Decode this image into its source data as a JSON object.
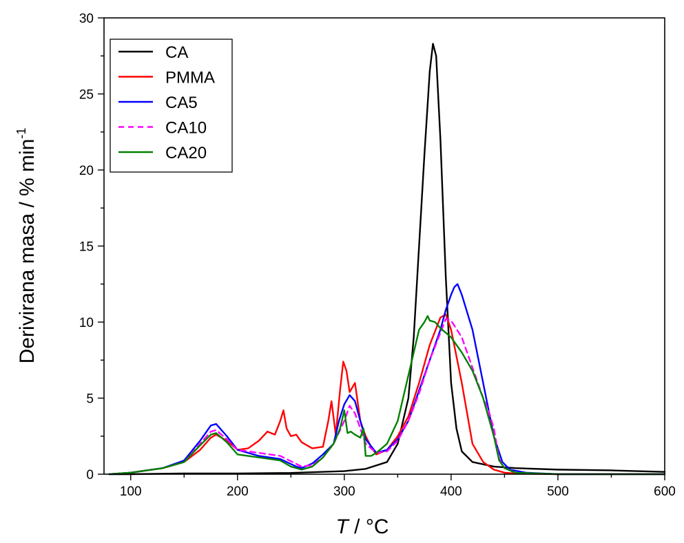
{
  "chart_data": {
    "type": "line",
    "xlabel_italic": "T",
    "xlabel_rest": " / °C",
    "ylabel_main": "Derivirana masa / % min",
    "ylabel_sup": "-1",
    "xlim": [
      75,
      600
    ],
    "ylim": [
      0,
      30
    ],
    "xticks": [
      100,
      200,
      300,
      400,
      500,
      600
    ],
    "yticks": [
      0,
      5,
      10,
      15,
      20,
      25,
      30
    ],
    "grid": false,
    "legend_position": "top-left",
    "series": [
      {
        "name": "CA",
        "color": "#000000",
        "dash": "",
        "x": [
          80,
          100,
          150,
          200,
          250,
          300,
          320,
          340,
          350,
          360,
          365,
          370,
          375,
          380,
          383,
          386,
          390,
          395,
          400,
          405,
          410,
          420,
          440,
          460,
          500,
          550,
          600
        ],
        "y": [
          0.0,
          0.0,
          0.05,
          0.05,
          0.08,
          0.2,
          0.35,
          0.8,
          2.0,
          5.0,
          9.0,
          15.0,
          21.0,
          26.5,
          28.3,
          27.5,
          22.0,
          13.0,
          6.0,
          3.0,
          1.5,
          0.8,
          0.5,
          0.4,
          0.3,
          0.25,
          0.15
        ]
      },
      {
        "name": "PMMA",
        "color": "#ff0000",
        "dash": "",
        "x": [
          80,
          100,
          130,
          150,
          165,
          175,
          180,
          190,
          200,
          210,
          220,
          228,
          235,
          240,
          243,
          246,
          250,
          255,
          260,
          270,
          280,
          285,
          288,
          292,
          296,
          299,
          302,
          305,
          310,
          315,
          320,
          325,
          330,
          340,
          350,
          360,
          370,
          380,
          390,
          395,
          400,
          410,
          420,
          430,
          440,
          450,
          460,
          500,
          600
        ],
        "y": [
          0.0,
          0.1,
          0.4,
          0.8,
          1.6,
          2.4,
          2.6,
          2.2,
          1.6,
          1.7,
          2.2,
          2.8,
          2.6,
          3.5,
          4.2,
          3.0,
          2.5,
          2.6,
          2.1,
          1.7,
          1.8,
          3.5,
          4.8,
          2.6,
          5.5,
          7.4,
          6.8,
          5.4,
          6.0,
          3.5,
          2.5,
          1.8,
          1.3,
          1.6,
          2.5,
          3.8,
          6.0,
          8.5,
          10.3,
          10.5,
          9.5,
          6.0,
          2.0,
          0.8,
          0.3,
          0.1,
          0.05,
          0.0,
          0.0
        ]
      },
      {
        "name": "CA5",
        "color": "#0000ff",
        "dash": "",
        "x": [
          80,
          100,
          130,
          150,
          165,
          175,
          180,
          190,
          200,
          220,
          240,
          255,
          260,
          270,
          280,
          290,
          295,
          300,
          305,
          310,
          315,
          320,
          330,
          340,
          350,
          360,
          370,
          380,
          390,
          395,
          400,
          403,
          406,
          410,
          420,
          430,
          440,
          448,
          455,
          470,
          500,
          600
        ],
        "y": [
          0.0,
          0.1,
          0.4,
          0.9,
          2.2,
          3.2,
          3.3,
          2.5,
          1.6,
          1.2,
          1.0,
          0.5,
          0.4,
          0.7,
          1.3,
          2.0,
          3.5,
          4.6,
          5.2,
          4.8,
          3.5,
          2.3,
          1.4,
          1.6,
          2.3,
          3.5,
          5.5,
          7.5,
          9.5,
          10.8,
          11.8,
          12.3,
          12.5,
          11.8,
          9.5,
          6.0,
          2.5,
          0.8,
          0.3,
          0.1,
          0.0,
          0.0
        ]
      },
      {
        "name": "CA10",
        "color": "#ff00ff",
        "dash": "8,6",
        "x": [
          80,
          100,
          130,
          150,
          165,
          175,
          180,
          190,
          200,
          220,
          240,
          260,
          270,
          280,
          290,
          300,
          305,
          310,
          315,
          320,
          330,
          340,
          350,
          360,
          370,
          380,
          390,
          395,
          400,
          410,
          420,
          430,
          435,
          440,
          445,
          450,
          460,
          500,
          600
        ],
        "y": [
          0.0,
          0.1,
          0.4,
          0.8,
          2.0,
          2.8,
          2.9,
          2.3,
          1.6,
          1.4,
          1.2,
          0.5,
          0.6,
          1.1,
          2.0,
          3.5,
          4.5,
          4.0,
          3.0,
          2.0,
          1.4,
          1.5,
          2.2,
          3.5,
          5.3,
          7.5,
          9.3,
          10.2,
          10.1,
          9.0,
          7.0,
          5.0,
          4.2,
          3.0,
          1.0,
          0.4,
          0.1,
          0.0,
          0.0
        ]
      },
      {
        "name": "CA20",
        "color": "#008000",
        "dash": "",
        "x": [
          80,
          100,
          130,
          150,
          165,
          175,
          180,
          190,
          200,
          220,
          240,
          250,
          260,
          270,
          280,
          290,
          296,
          300,
          303,
          306,
          310,
          315,
          318,
          320,
          325,
          330,
          340,
          350,
          355,
          360,
          365,
          370,
          375,
          378,
          380,
          385,
          390,
          400,
          410,
          420,
          430,
          440,
          445,
          450,
          460,
          500,
          600
        ],
        "y": [
          0.0,
          0.1,
          0.4,
          0.8,
          1.9,
          2.6,
          2.7,
          2.1,
          1.3,
          1.1,
          0.9,
          0.5,
          0.3,
          0.5,
          1.1,
          2.0,
          3.0,
          4.2,
          2.7,
          2.8,
          2.6,
          2.4,
          3.0,
          1.2,
          1.2,
          1.4,
          2.0,
          3.5,
          5.0,
          6.5,
          8.0,
          9.5,
          10.0,
          10.4,
          10.1,
          10.0,
          9.6,
          9.0,
          8.0,
          6.8,
          5.0,
          2.5,
          0.9,
          0.4,
          0.1,
          0.0,
          0.0
        ]
      }
    ]
  }
}
